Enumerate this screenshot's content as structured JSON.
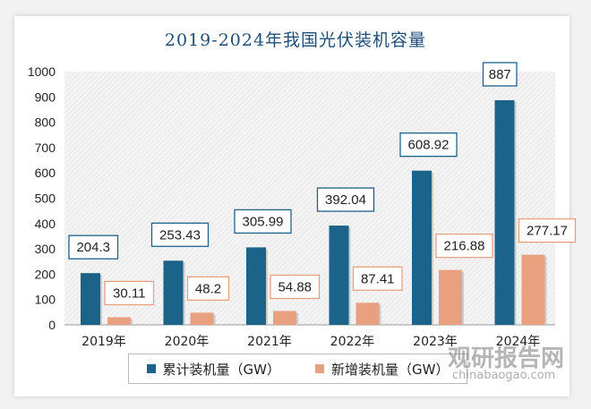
{
  "chart_data": {
    "type": "bar",
    "title": "2019-2024年我国光伏装机容量",
    "categories": [
      "2019年",
      "2020年",
      "2021年",
      "2022年",
      "2023年",
      "2024年"
    ],
    "series": [
      {
        "name": "累计装机量（GW）",
        "color": "#1b6389",
        "values": [
          204.3,
          253.43,
          305.99,
          392.04,
          608.92,
          887
        ],
        "labels": [
          "204.3",
          "253.43",
          "305.99",
          "392.04",
          "608.92",
          "887"
        ]
      },
      {
        "name": "新增装机量（GW）",
        "color": "#e8a07f",
        "values": [
          30.11,
          48.2,
          54.88,
          87.41,
          216.88,
          277.17
        ],
        "labels": [
          "30.11",
          "48.2",
          "54.88",
          "87.41",
          "216.88",
          "277.17"
        ]
      }
    ],
    "ylim": [
      0,
      1000
    ],
    "yticks": [
      "0",
      "100",
      "200",
      "300",
      "400",
      "500",
      "600",
      "700",
      "800",
      "900",
      "1000"
    ],
    "xlabel": "",
    "ylabel": "",
    "legend": "bottom",
    "grid": false
  },
  "watermark": {
    "brand": "观研报告网",
    "url": "chinabaogao.com"
  }
}
